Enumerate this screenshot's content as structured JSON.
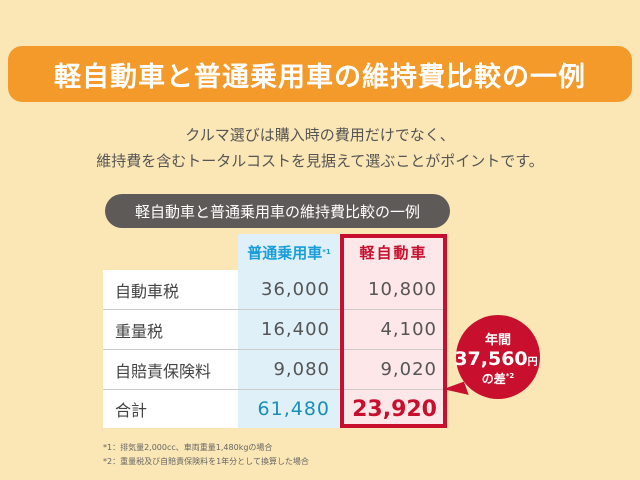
{
  "title": "軽自動車と普通乗用車の維持費比較の一例",
  "lead": [
    "クルマ選びは購入時の費用だけでなく、",
    "維持費を含むトータルコストを見据えて選ぶことがポイントです。"
  ],
  "table": {
    "caption": "軽自動車と普通乗用車の維持費比較の一例",
    "headers": {
      "regular": "普通乗用車",
      "regular_note": "*1",
      "kei": "軽自動車"
    },
    "rows": [
      {
        "label": "自動車税",
        "regular": "36,000",
        "kei": "10,800"
      },
      {
        "label": "重量税",
        "regular": "16,400",
        "kei": "4,100"
      },
      {
        "label": "自賠責保険料",
        "regular": "9,080",
        "kei": "9,020"
      },
      {
        "label": "合計",
        "regular": "61,480",
        "kei": "23,920"
      }
    ]
  },
  "bubble": {
    "line1": "年間",
    "amount": "37,560",
    "unit": "円",
    "line3": "の差",
    "note": "*2"
  },
  "notes": [
    "*1：排気量2,000cc、車両重量1,480kgの場合",
    "*2：重量税及び自賠責保険料を1年分として換算した場合"
  ],
  "colors": {
    "banner": "#f39a2a",
    "blue": "#1a9ed9",
    "red": "#c8102e"
  }
}
